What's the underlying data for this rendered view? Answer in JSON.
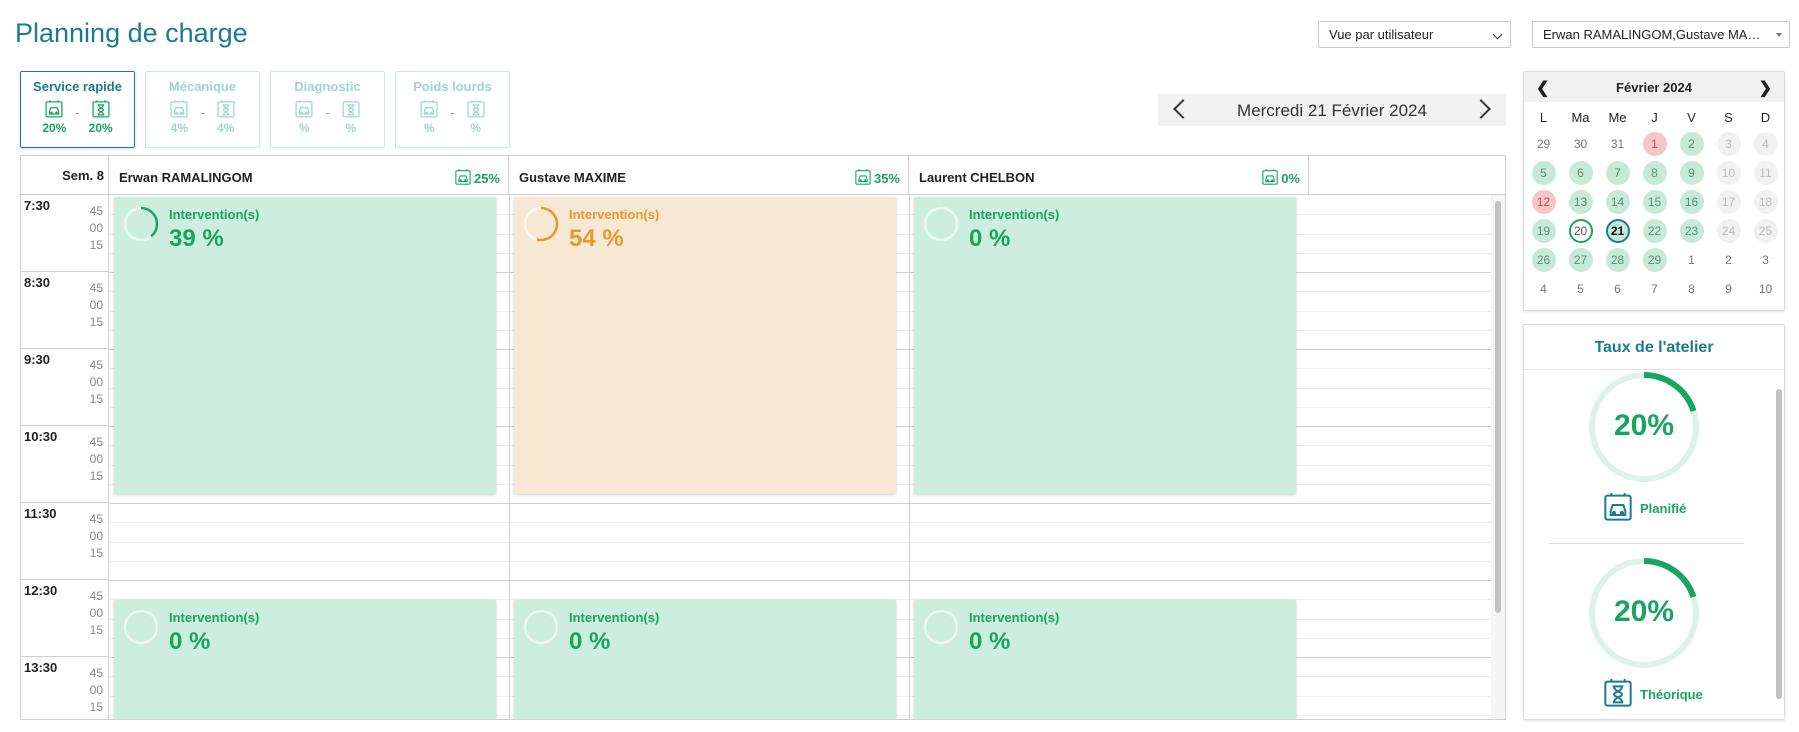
{
  "header": {
    "title": "Planning de charge",
    "view_select": "Vue par utilisateur",
    "users_select": "Erwan RAMALINGOM,Gustave MAXIME,Laurent CHELBON"
  },
  "tabs": [
    {
      "name": "Service rapide",
      "planned": "20%",
      "theoretical": "20%",
      "active": true
    },
    {
      "name": "Mécanique",
      "planned": "4%",
      "theoretical": "4%",
      "active": false
    },
    {
      "name": "Diagnostic",
      "planned": "%",
      "theoretical": "%",
      "active": false
    },
    {
      "name": "Poids lourds",
      "planned": "%",
      "theoretical": "%",
      "active": false
    }
  ],
  "date_nav": {
    "label": "Mercredi 21 Février 2024"
  },
  "schedule": {
    "week_label": "Sem. 8",
    "columns": [
      {
        "name": "Erwan RAMALINGOM",
        "pct": "25%"
      },
      {
        "name": "Gustave MAXIME",
        "pct": "35%"
      },
      {
        "name": "Laurent CHELBON",
        "pct": "0%"
      }
    ],
    "hours": [
      "7:30",
      "8:30",
      "9:30",
      "10:30",
      "11:30",
      "12:30",
      "13:30"
    ],
    "quarters": [
      "45",
      "00",
      "15"
    ],
    "morning_blocks": [
      {
        "label": "Intervention(s)",
        "value": "39 %",
        "ratio": 0.39,
        "color": "#17a55f",
        "status": "green"
      },
      {
        "label": "Intervention(s)",
        "value": "54 %",
        "ratio": 0.54,
        "color": "#e59a2f",
        "status": "orange"
      },
      {
        "label": "Intervention(s)",
        "value": "0 %",
        "ratio": 0,
        "color": "#17a55f",
        "status": "green"
      }
    ],
    "afternoon_blocks": [
      {
        "label": "Intervention(s)",
        "value": "0 %",
        "ratio": 0
      },
      {
        "label": "Intervention(s)",
        "value": "0 %",
        "ratio": 0
      },
      {
        "label": "Intervention(s)",
        "value": "0 %",
        "ratio": 0
      }
    ]
  },
  "calendar": {
    "title": "Février 2024",
    "prev": "❮",
    "next": "❯",
    "dow": [
      "L",
      "Ma",
      "Me",
      "J",
      "V",
      "S",
      "D"
    ],
    "weeks": [
      [
        {
          "d": "29",
          "s": "out"
        },
        {
          "d": "30",
          "s": "out"
        },
        {
          "d": "31",
          "s": "out"
        },
        {
          "d": "1",
          "s": "red"
        },
        {
          "d": "2",
          "s": "green"
        },
        {
          "d": "3",
          "s": "grey"
        },
        {
          "d": "4",
          "s": "grey"
        }
      ],
      [
        {
          "d": "5",
          "s": "green"
        },
        {
          "d": "6",
          "s": "green"
        },
        {
          "d": "7",
          "s": "green"
        },
        {
          "d": "8",
          "s": "green"
        },
        {
          "d": "9",
          "s": "green"
        },
        {
          "d": "10",
          "s": "grey"
        },
        {
          "d": "11",
          "s": "grey"
        }
      ],
      [
        {
          "d": "12",
          "s": "red"
        },
        {
          "d": "13",
          "s": "green"
        },
        {
          "d": "14",
          "s": "green"
        },
        {
          "d": "15",
          "s": "green"
        },
        {
          "d": "16",
          "s": "green"
        },
        {
          "d": "17",
          "s": "grey"
        },
        {
          "d": "18",
          "s": "grey"
        }
      ],
      [
        {
          "d": "19",
          "s": "green"
        },
        {
          "d": "20",
          "s": "ring"
        },
        {
          "d": "21",
          "s": "today"
        },
        {
          "d": "22",
          "s": "green"
        },
        {
          "d": "23",
          "s": "green"
        },
        {
          "d": "24",
          "s": "grey"
        },
        {
          "d": "25",
          "s": "grey"
        }
      ],
      [
        {
          "d": "26",
          "s": "green"
        },
        {
          "d": "27",
          "s": "green"
        },
        {
          "d": "28",
          "s": "green"
        },
        {
          "d": "29",
          "s": "green"
        },
        {
          "d": "1",
          "s": "out"
        },
        {
          "d": "2",
          "s": "out"
        },
        {
          "d": "3",
          "s": "out"
        }
      ],
      [
        {
          "d": "4",
          "s": "out"
        },
        {
          "d": "5",
          "s": "out"
        },
        {
          "d": "6",
          "s": "out"
        },
        {
          "d": "7",
          "s": "out"
        },
        {
          "d": "8",
          "s": "out"
        },
        {
          "d": "9",
          "s": "out"
        },
        {
          "d": "10",
          "s": "out"
        }
      ]
    ]
  },
  "atelier": {
    "title": "Taux de l'atelier",
    "planned": {
      "value": "20%",
      "ratio": 0.2,
      "label": "Planifié"
    },
    "theoretical": {
      "value": "20%",
      "ratio": 0.2,
      "label": "Théorique"
    }
  },
  "colors": {
    "accent": "#1a7c93",
    "green": "#17a55f",
    "orange": "#e59a2f"
  }
}
